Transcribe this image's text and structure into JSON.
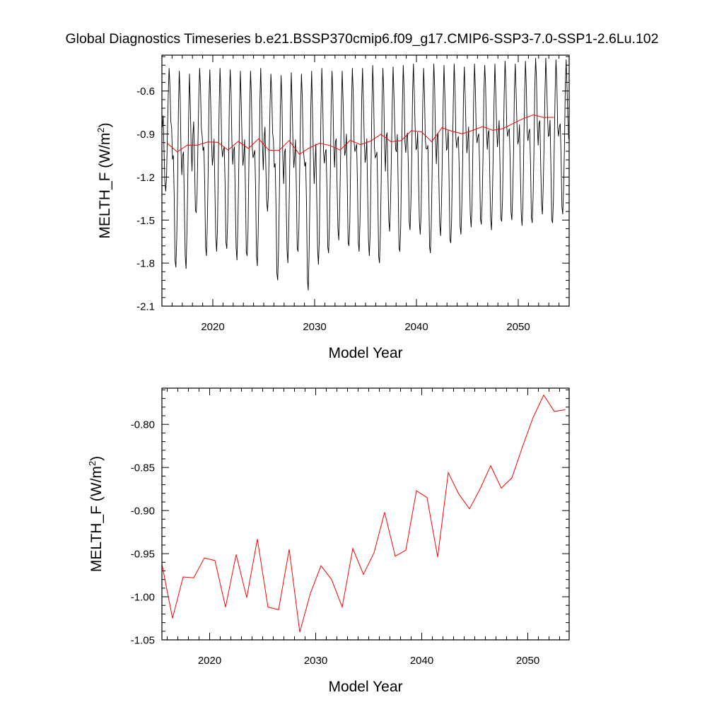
{
  "title": "Global Diagnostics Timeseries b.e21.BSSP370cmip6.f09_g17.CMIP6-SSP3-7.0-SSP1-2.6Lu.102",
  "colors": {
    "monthly": "#000000",
    "annual": "#ff0000",
    "axes": "#000000"
  },
  "chart_data": [
    {
      "type": "line",
      "xlabel": "Model Year",
      "ylabel_main": "MELTH_F (W/m",
      "ylabel_sup": "2",
      "ylabel_close": ")",
      "xlim": [
        2015,
        2055
      ],
      "ylim": [
        -2.1,
        -0.35
      ],
      "xticks": [
        2020,
        2030,
        2040,
        2050
      ],
      "xtick_labels": [
        "2020",
        "2030",
        "2040",
        "2050"
      ],
      "yticks": [
        -2.1,
        -1.8,
        -1.5,
        -1.2,
        -0.9,
        -0.6
      ],
      "ytick_labels": [
        "-2.1",
        "-1.8",
        "-1.5",
        "-1.2",
        "-0.9",
        "-0.6"
      ],
      "series": [
        {
          "color": "#000000",
          "x_start": 2015.04,
          "x_step": 0.08333,
          "monthly_pattern_note": "one max and one min per year",
          "yearly_max": [
            -0.44,
            -0.46,
            -0.48,
            -0.44,
            -0.45,
            -0.44,
            -0.45,
            -0.46,
            -0.46,
            -0.44,
            -0.48,
            -0.49,
            -0.47,
            -0.48,
            -0.46,
            -0.44,
            -0.46,
            -0.46,
            -0.44,
            -0.44,
            -0.42,
            -0.44,
            -0.43,
            -0.42,
            -0.41,
            -0.44,
            -0.41,
            -0.42,
            -0.41,
            -0.43,
            -0.41,
            -0.42,
            -0.41,
            -0.39,
            -0.41,
            -0.39,
            -0.37,
            -0.37,
            -0.38,
            -0.38
          ],
          "yearly_min": [
            -1.3,
            -1.83,
            -1.84,
            -1.45,
            -1.75,
            -1.72,
            -1.7,
            -1.78,
            -1.75,
            -1.82,
            -1.44,
            -1.92,
            -1.8,
            -1.72,
            -1.99,
            -1.81,
            -1.73,
            -1.64,
            -1.68,
            -1.72,
            -1.75,
            -1.8,
            -1.58,
            -1.72,
            -1.57,
            -1.6,
            -1.73,
            -1.61,
            -1.66,
            -1.6,
            -1.55,
            -1.53,
            -1.57,
            -1.51,
            -1.5,
            -1.54,
            -1.52,
            -1.46,
            -1.52,
            -1.46
          ]
        },
        {
          "color": "#ff0000",
          "x": [
            2015.5,
            2016.5,
            2017.5,
            2018.5,
            2019.5,
            2020.5,
            2021.5,
            2022.5,
            2023.5,
            2024.5,
            2025.5,
            2026.5,
            2027.5,
            2028.5,
            2029.5,
            2030.5,
            2031.5,
            2032.5,
            2033.5,
            2034.5,
            2035.5,
            2036.5,
            2037.5,
            2038.5,
            2039.5,
            2040.5,
            2041.5,
            2042.5,
            2043.5,
            2044.5,
            2045.5,
            2046.5,
            2047.5,
            2048.5,
            2049.5,
            2050.5,
            2051.5,
            2052.5,
            2053.5
          ],
          "y": [
            -0.962,
            -1.025,
            -0.977,
            -0.978,
            -0.955,
            -0.958,
            -1.012,
            -0.951,
            -1.001,
            -0.933,
            -1.012,
            -1.015,
            -0.945,
            -1.041,
            -0.996,
            -0.964,
            -0.98,
            -1.012,
            -0.944,
            -0.974,
            -0.949,
            -0.902,
            -0.953,
            -0.946,
            -0.877,
            -0.885,
            -0.954,
            -0.856,
            -0.881,
            -0.898,
            -0.875,
            -0.848,
            -0.874,
            -0.862,
            -0.826,
            -0.792,
            -0.766,
            -0.785,
            -0.783
          ]
        }
      ]
    },
    {
      "type": "line",
      "xlabel": "Model Year",
      "ylabel_main": "MELTH_F (W/m",
      "ylabel_sup": "2",
      "ylabel_close": ")",
      "xlim": [
        2015.5,
        2053.9
      ],
      "ylim": [
        -1.05,
        -0.758
      ],
      "xticks": [
        2020,
        2030,
        2040,
        2050
      ],
      "xtick_labels": [
        "2020",
        "2030",
        "2040",
        "2050"
      ],
      "yticks": [
        -1.05,
        -1.0,
        -0.95,
        -0.9,
        -0.85,
        -0.8
      ],
      "ytick_labels": [
        "-1.05",
        "-1.00",
        "-0.95",
        "-0.90",
        "-0.85",
        "-0.80"
      ],
      "series": [
        {
          "color": "#ff0000",
          "x": [
            2015.5,
            2016.5,
            2017.5,
            2018.5,
            2019.5,
            2020.5,
            2021.5,
            2022.5,
            2023.5,
            2024.5,
            2025.5,
            2026.5,
            2027.5,
            2028.5,
            2029.5,
            2030.5,
            2031.5,
            2032.5,
            2033.5,
            2034.5,
            2035.5,
            2036.5,
            2037.5,
            2038.5,
            2039.5,
            2040.5,
            2041.5,
            2042.5,
            2043.5,
            2044.5,
            2045.5,
            2046.5,
            2047.5,
            2048.5,
            2049.5,
            2050.5,
            2051.5,
            2052.5,
            2053.5
          ],
          "y": [
            -0.962,
            -1.025,
            -0.977,
            -0.978,
            -0.955,
            -0.958,
            -1.012,
            -0.951,
            -1.001,
            -0.933,
            -1.012,
            -1.015,
            -0.945,
            -1.041,
            -0.996,
            -0.964,
            -0.98,
            -1.012,
            -0.944,
            -0.974,
            -0.949,
            -0.902,
            -0.953,
            -0.946,
            -0.877,
            -0.885,
            -0.954,
            -0.856,
            -0.881,
            -0.898,
            -0.875,
            -0.848,
            -0.874,
            -0.862,
            -0.826,
            -0.792,
            -0.766,
            -0.785,
            -0.783
          ]
        }
      ]
    }
  ]
}
